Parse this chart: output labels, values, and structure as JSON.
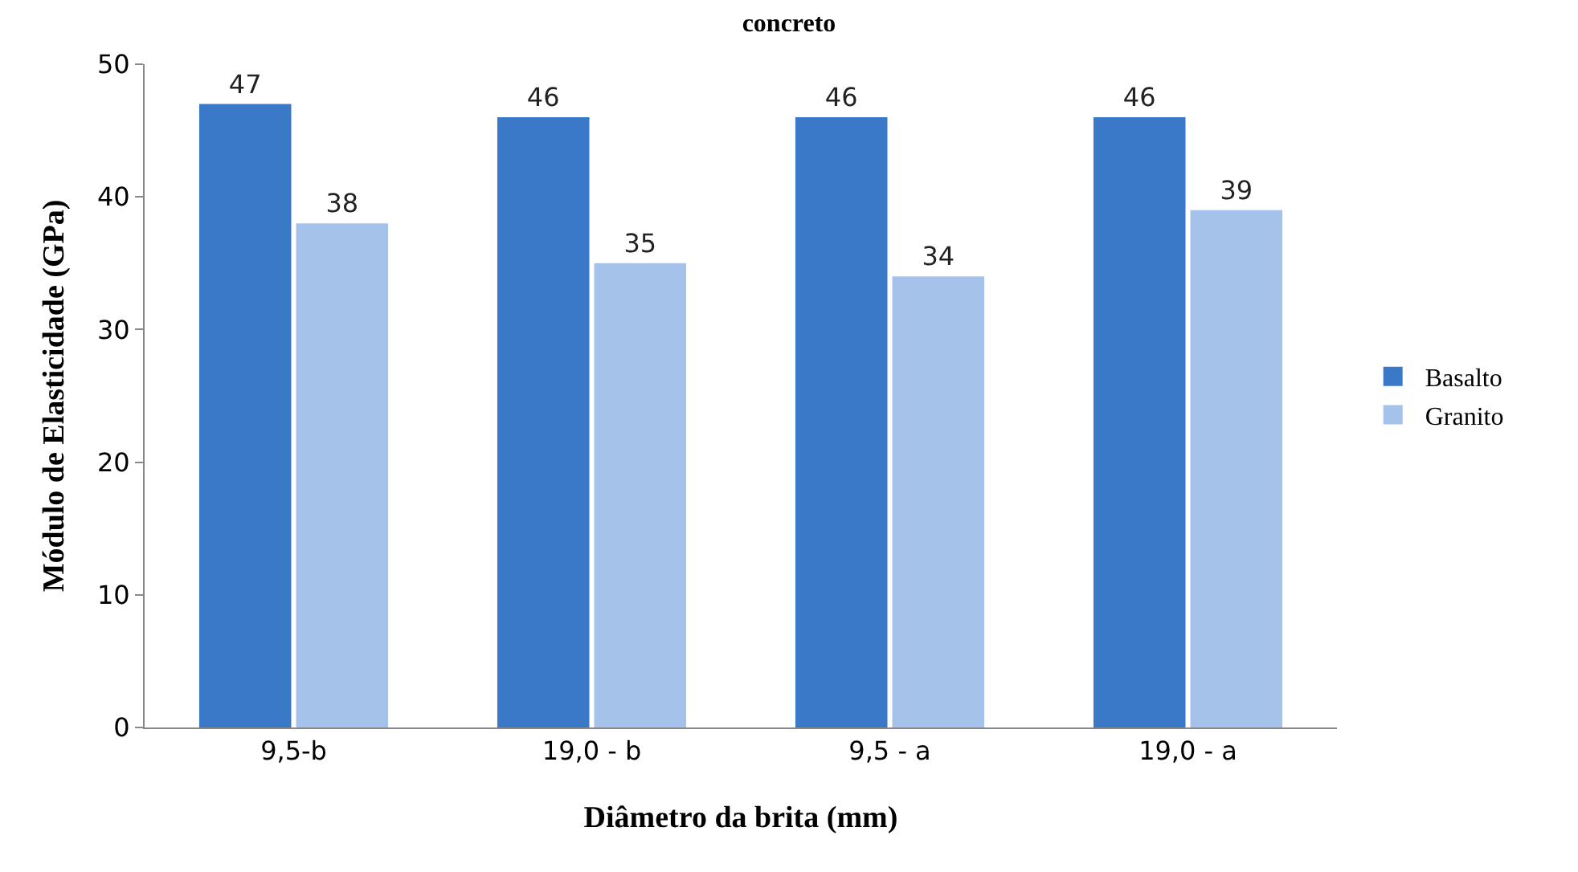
{
  "chart_data": {
    "type": "bar",
    "title": "concreto",
    "xlabel": "Diâmetro da brita (mm)",
    "ylabel": "Módulo de Elasticidade (GPa)",
    "categories": [
      "9,5-b",
      "19,0 - b",
      "9,5 - a",
      "19,0 - a"
    ],
    "series": [
      {
        "name": "Basalto",
        "color": "#3a78c8",
        "values": [
          47,
          46,
          46,
          46
        ]
      },
      {
        "name": "Granito",
        "color": "#a4c2ea",
        "values": [
          38,
          35,
          34,
          39
        ]
      }
    ],
    "ylim": [
      0,
      50
    ],
    "yticks": [
      0,
      10,
      20,
      30,
      40,
      50
    ],
    "data_labels": true,
    "legend": "right"
  }
}
